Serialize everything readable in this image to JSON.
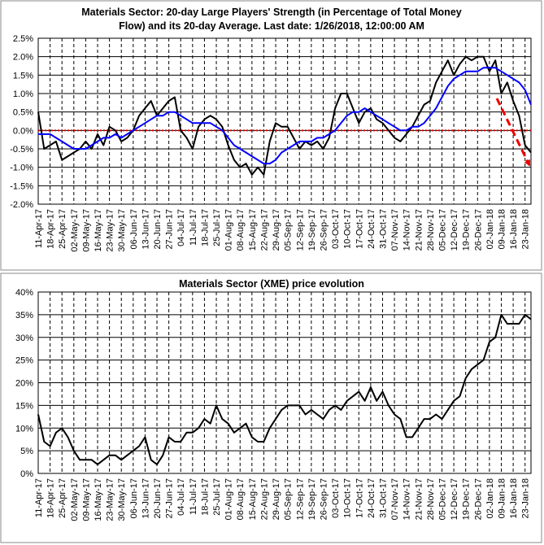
{
  "chart_data": [
    {
      "type": "line",
      "title": [
        "Materials Sector: 20-day Large Players' Strength (in Percentage of Total Money",
        "Flow) and its 20-day Average. Last date: 1/26/2018, 12:00:00 AM"
      ],
      "categories": [
        "11-Apr-17",
        null,
        "18-Apr-17",
        null,
        "25-Apr-17",
        null,
        "02-May-17",
        null,
        "09-May-17",
        null,
        "16-May-17",
        null,
        "23-May-17",
        null,
        "30-May-17",
        null,
        "06-Jun-17",
        null,
        "13-Jun-17",
        null,
        "20-Jun-17",
        null,
        "27-Jun-17",
        null,
        "04-Jul-17",
        null,
        "11-Jul-17",
        null,
        "18-Jul-17",
        null,
        "25-Jul-17",
        null,
        "01-Aug-17",
        null,
        "08-Aug-17",
        null,
        "15-Aug-17",
        null,
        "22-Aug-17",
        null,
        "29-Aug-17",
        null,
        "05-Sep-17",
        null,
        "12-Sep-17",
        null,
        "19-Sep-17",
        null,
        "26-Sep-17",
        null,
        "03-Oct-17",
        null,
        "10-Oct-17",
        null,
        "17-Oct-17",
        null,
        "24-Oct-17",
        null,
        "31-Oct-17",
        null,
        "07-Nov-17",
        null,
        "14-Nov-17",
        null,
        "21-Nov-17",
        null,
        "28-Nov-17",
        null,
        "05-Dec-17",
        null,
        "12-Dec-17",
        null,
        "19-Dec-17",
        null,
        "26-Dec-17",
        null,
        "02-Jan-18",
        null,
        "09-Jan-18",
        null,
        "16-Jan-18",
        null,
        "23-Jan-18",
        null
      ],
      "series": [
        {
          "color": "#000000",
          "values": [
            0.5,
            -0.5,
            -0.4,
            -0.3,
            -0.8,
            -0.7,
            -0.6,
            -0.5,
            -0.3,
            -0.5,
            -0.1,
            -0.4,
            0.1,
            0.0,
            -0.3,
            -0.2,
            0.0,
            0.4,
            0.6,
            0.8,
            0.4,
            0.6,
            0.8,
            0.9,
            0.0,
            -0.2,
            -0.5,
            0.1,
            0.3,
            0.4,
            0.3,
            0.1,
            -0.4,
            -0.8,
            -1.0,
            -0.9,
            -1.2,
            -1.0,
            -1.2,
            -0.3,
            0.2,
            0.1,
            0.1,
            -0.2,
            -0.5,
            -0.3,
            -0.4,
            -0.3,
            -0.5,
            -0.2,
            0.6,
            1.0,
            1.0,
            0.6,
            0.2,
            0.5,
            0.6,
            0.3,
            0.2,
            0.0,
            -0.2,
            -0.3,
            -0.1,
            0.1,
            0.4,
            0.7,
            0.8,
            1.3,
            1.6,
            1.9,
            1.5,
            1.8,
            2.0,
            1.9,
            2.0,
            2.0,
            1.6,
            1.9,
            1.0,
            1.3,
            0.8,
            0.4,
            -0.4,
            -0.6
          ]
        },
        {
          "color": "#0000ff",
          "values": [
            -0.1,
            -0.1,
            -0.1,
            -0.2,
            -0.3,
            -0.4,
            -0.5,
            -0.5,
            -0.5,
            -0.4,
            -0.3,
            -0.2,
            -0.2,
            -0.1,
            -0.2,
            -0.1,
            0.0,
            0.1,
            0.2,
            0.3,
            0.4,
            0.4,
            0.5,
            0.5,
            0.4,
            0.3,
            0.2,
            0.2,
            0.2,
            0.2,
            0.1,
            0.0,
            -0.2,
            -0.4,
            -0.5,
            -0.6,
            -0.7,
            -0.8,
            -0.9,
            -0.9,
            -0.8,
            -0.6,
            -0.5,
            -0.4,
            -0.3,
            -0.3,
            -0.3,
            -0.2,
            -0.2,
            -0.1,
            0.0,
            0.2,
            0.4,
            0.5,
            0.5,
            0.6,
            0.5,
            0.4,
            0.3,
            0.2,
            0.1,
            0.0,
            0.0,
            0.1,
            0.1,
            0.2,
            0.4,
            0.6,
            0.9,
            1.2,
            1.4,
            1.5,
            1.6,
            1.6,
            1.6,
            1.7,
            1.7,
            1.7,
            1.6,
            1.5,
            1.4,
            1.3,
            1.1,
            0.7
          ]
        }
      ],
      "ylim": [
        -2,
        2.5
      ],
      "yticks": [
        {
          "value": -2,
          "label": "-2.0%"
        },
        {
          "value": -1.5,
          "label": "-1.5%"
        },
        {
          "value": -1,
          "label": "-1.0%"
        },
        {
          "value": -0.5,
          "label": "-0.5%"
        },
        {
          "value": 0,
          "label": "0.0%"
        },
        {
          "value": 0.5,
          "label": "0.5%"
        },
        {
          "value": 1,
          "label": "1.0%"
        },
        {
          "value": 1.5,
          "label": "1.5%"
        },
        {
          "value": 2,
          "label": "2.0%"
        },
        {
          "value": 2.5,
          "label": "2.5%"
        }
      ],
      "grid": true,
      "zero_line_color": "#dd0000"
    },
    {
      "type": "line",
      "title": [
        "Materials Sector (XME) price evolution"
      ],
      "categories": [
        "11-Apr-17",
        null,
        "18-Apr-17",
        null,
        "25-Apr-17",
        null,
        "02-May-17",
        null,
        "09-May-17",
        null,
        "16-May-17",
        null,
        "23-May-17",
        null,
        "30-May-17",
        null,
        "06-Jun-17",
        null,
        "13-Jun-17",
        null,
        "20-Jun-17",
        null,
        "27-Jun-17",
        null,
        "04-Jul-17",
        null,
        "11-Jul-17",
        null,
        "18-Jul-17",
        null,
        "25-Jul-17",
        null,
        "01-Aug-17",
        null,
        "08-Aug-17",
        null,
        "15-Aug-17",
        null,
        "22-Aug-17",
        null,
        "29-Aug-17",
        null,
        "05-Sep-17",
        null,
        "12-Sep-17",
        null,
        "19-Sep-17",
        null,
        "26-Sep-17",
        null,
        "03-Oct-17",
        null,
        "10-Oct-17",
        null,
        "17-Oct-17",
        null,
        "24-Oct-17",
        null,
        "31-Oct-17",
        null,
        "07-Nov-17",
        null,
        "14-Nov-17",
        null,
        "21-Nov-17",
        null,
        "28-Nov-17",
        null,
        "05-Dec-17",
        null,
        "12-Dec-17",
        null,
        "19-Dec-17",
        null,
        "26-Dec-17",
        null,
        "02-Jan-18",
        null,
        "09-Jan-18",
        null,
        "16-Jan-18",
        null,
        "23-Jan-18",
        null
      ],
      "series": [
        {
          "color": "#000000",
          "values": [
            13,
            7,
            6,
            9,
            10,
            8,
            5,
            3,
            3,
            3,
            2,
            3,
            4,
            4,
            3,
            4,
            5,
            6,
            8,
            3,
            2,
            4,
            8,
            7,
            7,
            9,
            9,
            10,
            12,
            11,
            15,
            12,
            11,
            9,
            10,
            11,
            8,
            7,
            7,
            10,
            12,
            14,
            15,
            15,
            15,
            13,
            14,
            13,
            12,
            14,
            15,
            14,
            16,
            17,
            18,
            16,
            19,
            16,
            18,
            15,
            13,
            12,
            8,
            8,
            10,
            12,
            12,
            13,
            12,
            14,
            16,
            17,
            21,
            23,
            24,
            25,
            29,
            30,
            35,
            33,
            33,
            33,
            35,
            34
          ]
        }
      ],
      "ylim": [
        0,
        40
      ],
      "yticks": [
        {
          "value": 0,
          "label": "0%"
        },
        {
          "value": 5,
          "label": "5%"
        },
        {
          "value": 10,
          "label": "10%"
        },
        {
          "value": 15,
          "label": "15%"
        },
        {
          "value": 20,
          "label": "20%"
        },
        {
          "value": 25,
          "label": "25%"
        },
        {
          "value": 30,
          "label": "30%"
        },
        {
          "value": 35,
          "label": "35%"
        },
        {
          "value": 40,
          "label": "40%"
        }
      ],
      "grid": true
    }
  ]
}
